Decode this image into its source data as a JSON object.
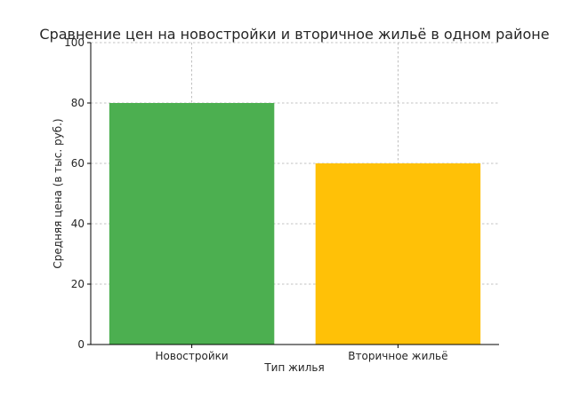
{
  "chart_data": {
    "type": "bar",
    "title": "Сравнение цен на новостройки и вторичное жильё в одном районе",
    "xlabel": "Тип жилья",
    "ylabel": "Средняя цена (в тыс. руб.)",
    "categories": [
      "Новостройки",
      "Вторичное жильё"
    ],
    "values": [
      80,
      60
    ],
    "colors": [
      "#4caf50",
      "#ffc107"
    ],
    "ylim": [
      0,
      100
    ],
    "yticks": [
      0,
      20,
      40,
      60,
      80,
      100
    ],
    "grid": true,
    "legend": "none"
  }
}
